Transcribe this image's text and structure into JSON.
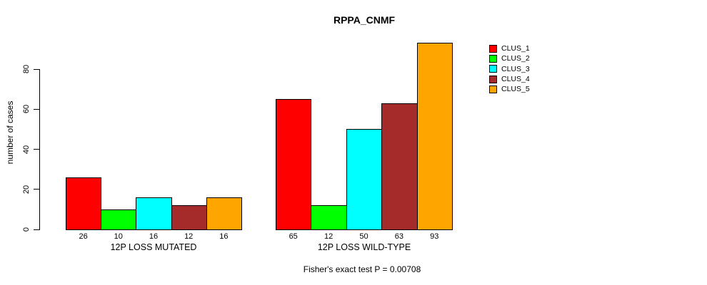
{
  "chart_data": {
    "type": "bar",
    "title": "RPPA_CNMF",
    "ylabel": "number of cases",
    "ylim": [
      0,
      97
    ],
    "yticks": [
      0,
      20,
      40,
      60,
      80
    ],
    "grid": false,
    "legend_position": "right",
    "bar_value_labels_shown": true,
    "categories": [
      "12P LOSS MUTATED",
      "12P LOSS WILD-TYPE"
    ],
    "series": [
      {
        "name": "CLUS_1",
        "color": "#ff0000",
        "values": [
          26,
          65
        ]
      },
      {
        "name": "CLUS_2",
        "color": "#00ff00",
        "values": [
          10,
          12
        ]
      },
      {
        "name": "CLUS_3",
        "color": "#00ffff",
        "values": [
          16,
          50
        ]
      },
      {
        "name": "CLUS_4",
        "color": "#a52a2a",
        "values": [
          12,
          63
        ]
      },
      {
        "name": "CLUS_5",
        "color": "#ffa500",
        "values": [
          16,
          93
        ]
      }
    ],
    "annotation": "Fisher's exact test P = 0.00708"
  }
}
